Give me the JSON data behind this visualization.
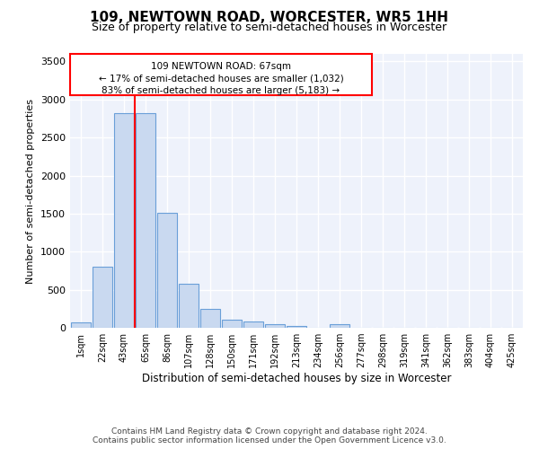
{
  "title": "109, NEWTOWN ROAD, WORCESTER, WR5 1HH",
  "subtitle": "Size of property relative to semi-detached houses in Worcester",
  "xlabel": "Distribution of semi-detached houses by size in Worcester",
  "ylabel": "Number of semi-detached properties",
  "categories": [
    "1sqm",
    "22sqm",
    "43sqm",
    "65sqm",
    "86sqm",
    "107sqm",
    "128sqm",
    "150sqm",
    "171sqm",
    "192sqm",
    "213sqm",
    "234sqm",
    "256sqm",
    "277sqm",
    "298sqm",
    "319sqm",
    "341sqm",
    "362sqm",
    "383sqm",
    "404sqm",
    "425sqm"
  ],
  "values": [
    75,
    800,
    2820,
    2820,
    1510,
    580,
    250,
    110,
    80,
    45,
    25,
    5,
    45,
    5,
    5,
    5,
    5,
    5,
    5,
    5,
    5
  ],
  "bar_color": "#c9d9f0",
  "bar_edge_color": "#6a9fd8",
  "property_line_x": 2.5,
  "annotation_text_line1": "109 NEWTOWN ROAD: 67sqm",
  "annotation_text_line2": "← 17% of semi-detached houses are smaller (1,032)",
  "annotation_text_line3": "83% of semi-detached houses are larger (5,183) →",
  "ylim": [
    0,
    3600
  ],
  "yticks": [
    0,
    500,
    1000,
    1500,
    2000,
    2500,
    3000,
    3500
  ],
  "background_color": "#eef2fb",
  "grid_color": "#ffffff",
  "footer_line1": "Contains HM Land Registry data © Crown copyright and database right 2024.",
  "footer_line2": "Contains public sector information licensed under the Open Government Licence v3.0."
}
